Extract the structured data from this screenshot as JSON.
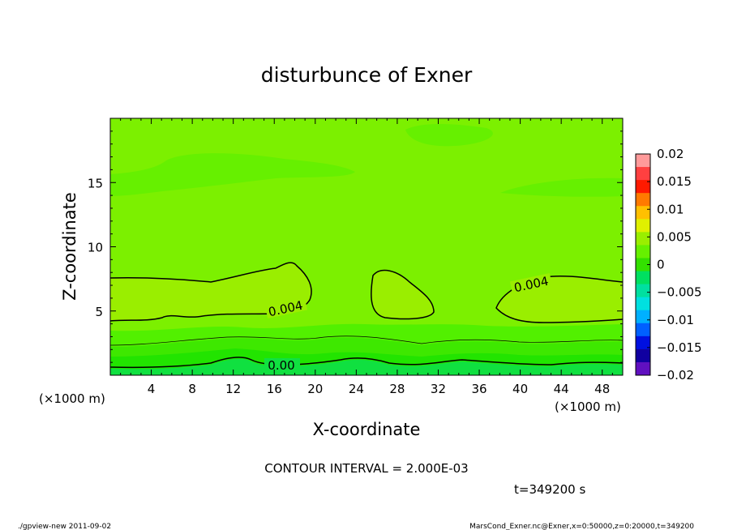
{
  "chart_data": {
    "type": "heatmap",
    "title": "disturbunce of Exner",
    "xlabel": "X-coordinate",
    "ylabel": "Z-coordinate",
    "x_unit_left": "(×1000 m)",
    "x_unit_right": "(×1000 m)",
    "xlim": [
      0,
      50
    ],
    "ylim": [
      0,
      20
    ],
    "x_ticks": [
      "4",
      "8",
      "12",
      "16",
      "20",
      "24",
      "28",
      "32",
      "36",
      "40",
      "44",
      "48"
    ],
    "y_ticks": [
      "5",
      "10",
      "15"
    ],
    "contour_labels": [
      "0.004",
      "0.004",
      "0.00"
    ],
    "contour_interval_text": "CONTOUR INTERVAL = 2.000E-03",
    "time_text": "t=349200 s",
    "colorbar": {
      "labels": [
        "0.02",
        "0.015",
        "0.01",
        "0.005",
        "0",
        "−0.005",
        "−0.01",
        "−0.015",
        "−0.02"
      ],
      "colors": [
        "#ff9a9a",
        "#ff4040",
        "#ff1a00",
        "#ff7a00",
        "#ffc000",
        "#e0f000",
        "#9aee00",
        "#66f000",
        "#33e000",
        "#00e060",
        "#00e0a0",
        "#00e0e0",
        "#00b0ff",
        "#0060ff",
        "#0010e0",
        "#1000a0",
        "#6010c0"
      ]
    },
    "fills": {
      "background": "#7cf000",
      "upper_band": "#66f000",
      "anomaly": "#9aee00",
      "low_band_1": "#52f000",
      "low_band_2": "#3ee800",
      "low_band_3": "#22e400",
      "surface": "#10e040"
    }
  },
  "footer": {
    "left": "./gpview-new   2011-09-02",
    "right": "MarsCond_Exner.nc@Exner,x=0:50000,z=0:20000,t=349200"
  }
}
